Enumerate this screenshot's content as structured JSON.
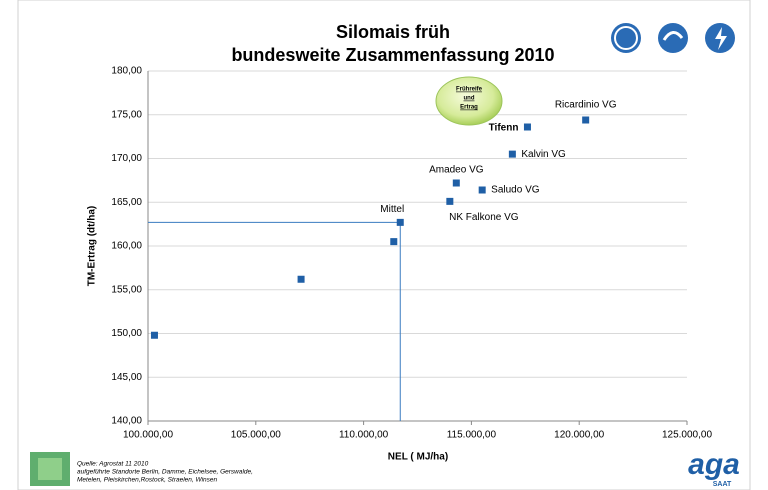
{
  "chart_data": {
    "type": "scatter",
    "title": [
      "Silomais früh",
      "bundesweite Zusammenfassung 2010"
    ],
    "x_label": "NEL ( MJ/ha)",
    "y_label": "TM-Ertrag (dt/ha)",
    "x": [
      100300,
      107100,
      111400,
      111700,
      114000,
      114300,
      115500,
      116900,
      117600,
      120300
    ],
    "values": [
      149.8,
      156.2,
      160.5,
      162.7,
      165.1,
      167.2,
      166.4,
      170.5,
      173.6,
      174.4
    ],
    "point_labels": [
      null,
      null,
      null,
      "Mittel",
      "NK Falkone VG",
      "Amadeo VG",
      "Saludo VG",
      "Kalvin VG",
      "Tifenn",
      "Ricardinio VG"
    ],
    "mean_point": 3,
    "color": "#1f5fa6",
    "xlim": [
      100000,
      125000
    ],
    "ylim": [
      140,
      180
    ],
    "xticks": [
      {
        "value": 100000,
        "label": "100.000,00"
      },
      {
        "value": 105000,
        "label": "105.000,00"
      },
      {
        "value": 110000,
        "label": "110.000,00"
      },
      {
        "value": 115000,
        "label": "115.000,00"
      },
      {
        "value": 120000,
        "label": "120.000,00"
      },
      {
        "value": 125000,
        "label": "125.000,00"
      }
    ],
    "yticks": [
      {
        "value": 140,
        "label": "140,00"
      },
      {
        "value": 145,
        "label": "145,00"
      },
      {
        "value": 150,
        "label": "150,00"
      },
      {
        "value": 155,
        "label": "155,00"
      },
      {
        "value": 160,
        "label": "160,00"
      },
      {
        "value": 165,
        "label": "165,00"
      },
      {
        "value": 170,
        "label": "170,00"
      },
      {
        "value": 175,
        "label": "175,00"
      },
      {
        "value": 180,
        "label": "180,00"
      }
    ],
    "grid": true,
    "annotation": [
      "Frühreife",
      "und",
      "Ertrag"
    ]
  },
  "source": [
    "Quelle: Agrostat 11  2010",
    "aufgeführte Standorte Berlin, Damme, Eichelsee, Gerswalde,",
    "Metelen, Pleiskirchen,Rostock, Straelen, Winsen"
  ],
  "logo": {
    "name": "aga",
    "sub": "SAAT"
  }
}
